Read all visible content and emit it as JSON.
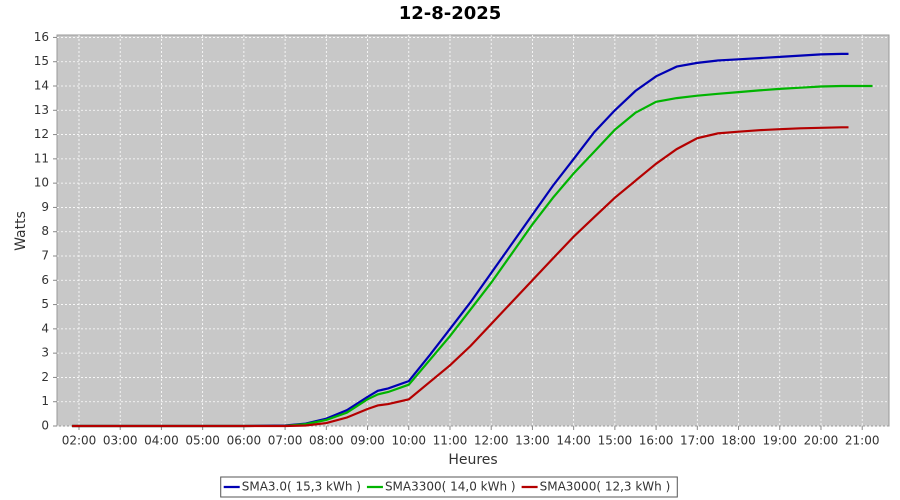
{
  "chart_data": {
    "type": "line",
    "title": "12-8-2025",
    "x_label": "Heures",
    "y_label": "Watts",
    "x": [
      "01:50",
      "03:00",
      "04:00",
      "05:00",
      "06:00",
      "07:00",
      "07:30",
      "08:00",
      "08:30",
      "09:00",
      "09:15",
      "09:30",
      "10:00",
      "10:30",
      "11:00",
      "11:30",
      "12:00",
      "12:30",
      "13:00",
      "13:30",
      "14:00",
      "14:30",
      "15:00",
      "15:30",
      "16:00",
      "16:30",
      "17:00",
      "17:30",
      "18:00",
      "18:30",
      "19:00",
      "19:30",
      "20:00",
      "20:30",
      "20:40",
      "21:15"
    ],
    "series": [
      {
        "name": "SMA3.0( 15,3 kWh )",
        "color": "#0000b4",
        "values": [
          0,
          0,
          0,
          0,
          0,
          0.02,
          0.1,
          0.3,
          0.65,
          1.2,
          1.45,
          1.55,
          1.85,
          2.9,
          4.0,
          5.1,
          6.3,
          7.5,
          8.7,
          9.9,
          11.0,
          12.1,
          13.0,
          13.8,
          14.4,
          14.8,
          14.95,
          15.05,
          15.1,
          15.15,
          15.2,
          15.25,
          15.3,
          15.32,
          15.32,
          null
        ]
      },
      {
        "name": "SMA3300( 14,0 kWh )",
        "color": "#00b400",
        "values": [
          0,
          0,
          0,
          0,
          0,
          0.01,
          0.08,
          0.25,
          0.55,
          1.1,
          1.3,
          1.4,
          1.7,
          2.7,
          3.7,
          4.8,
          5.9,
          7.1,
          8.3,
          9.4,
          10.4,
          11.3,
          12.2,
          12.9,
          13.35,
          13.5,
          13.6,
          13.68,
          13.75,
          13.82,
          13.88,
          13.93,
          13.98,
          14.0,
          14.0,
          14.0
        ]
      },
      {
        "name": "SMA3000( 12,3 kWh )",
        "color": "#b40000",
        "values": [
          0,
          0,
          0,
          0,
          0,
          0,
          0.02,
          0.12,
          0.35,
          0.7,
          0.85,
          0.9,
          1.1,
          1.8,
          2.5,
          3.3,
          4.2,
          5.1,
          6.0,
          6.9,
          7.8,
          8.6,
          9.4,
          10.1,
          10.8,
          11.4,
          11.85,
          12.05,
          12.12,
          12.18,
          12.22,
          12.26,
          12.28,
          12.3,
          12.3,
          null
        ]
      }
    ],
    "xlim": [
      "01:28",
      "21:39"
    ],
    "xticks": [
      "02:00",
      "03:00",
      "04:00",
      "05:00",
      "06:00",
      "07:00",
      "08:00",
      "09:00",
      "10:00",
      "11:00",
      "12:00",
      "13:00",
      "14:00",
      "15:00",
      "16:00",
      "17:00",
      "18:00",
      "19:00",
      "20:00",
      "21:00"
    ],
    "ylim": [
      0,
      16.1
    ],
    "yticks": [
      0,
      1,
      2,
      3,
      4,
      5,
      6,
      7,
      8,
      9,
      10,
      11,
      12,
      13,
      14,
      15,
      16
    ],
    "grid": true,
    "legend": "bottom"
  }
}
